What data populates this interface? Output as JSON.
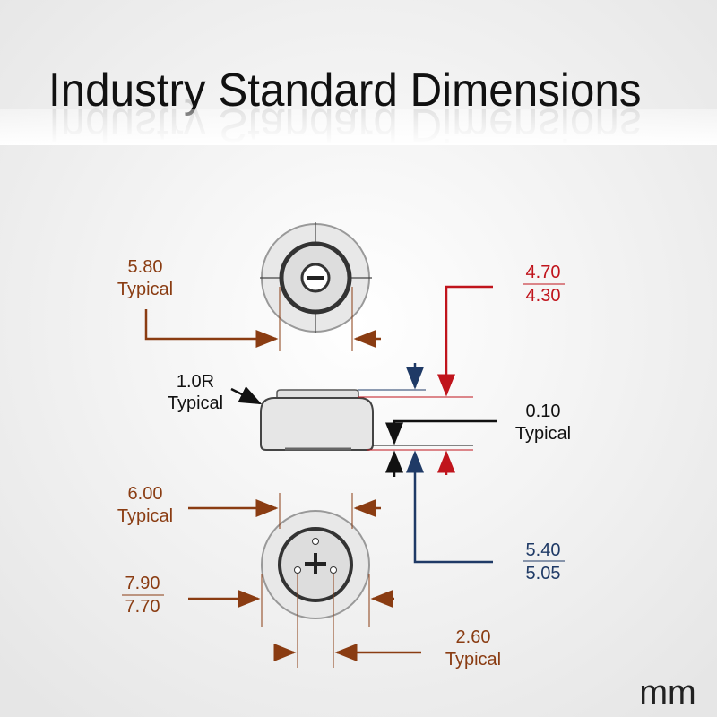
{
  "title": "Industry Standard Dimensions",
  "unit": "mm",
  "top_width": {
    "value": "5.80",
    "note": "Typical"
  },
  "height": {
    "max": "4.70",
    "min": "4.30"
  },
  "radius": {
    "value": "1.0R",
    "note": "Typical"
  },
  "step": {
    "value": "0.10",
    "note": "Typical"
  },
  "body_height": {
    "max": "5.40",
    "min": "5.05"
  },
  "inner_width": {
    "value": "6.00",
    "note": "Typical"
  },
  "outer_diameter": {
    "max": "7.90",
    "min": "7.70"
  },
  "hole_spacing": {
    "value": "2.60",
    "note": "Typical"
  }
}
